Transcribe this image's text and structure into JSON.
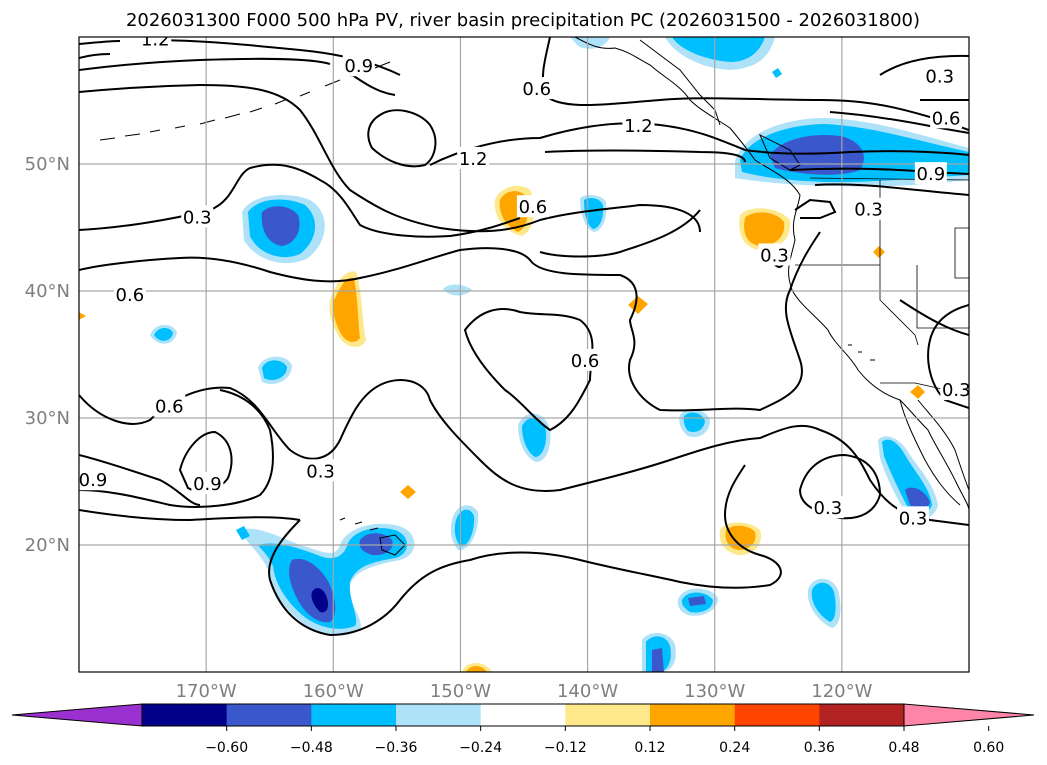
{
  "title": "2026031300 F000 500 hPa PV, river basin precipitation PC (2026031500 - 2026031800)",
  "map": {
    "lon_range": [
      -180,
      -110
    ],
    "lat_range": [
      10,
      60
    ],
    "lon_ticks": [
      {
        "value": -170,
        "label": "170°W"
      },
      {
        "value": -160,
        "label": "160°W"
      },
      {
        "value": -150,
        "label": "150°W"
      },
      {
        "value": -140,
        "label": "140°W"
      },
      {
        "value": -130,
        "label": "130°W"
      },
      {
        "value": -120,
        "label": "120°W"
      }
    ],
    "lat_ticks": [
      {
        "value": 20,
        "label": "20°N"
      },
      {
        "value": 30,
        "label": "30°N"
      },
      {
        "value": 40,
        "label": "40°N"
      },
      {
        "value": 50,
        "label": "50°N"
      }
    ],
    "gridlines": true,
    "contour_levels": [
      0.3,
      0.6,
      0.9,
      1.2
    ],
    "contour_labels": [
      {
        "text": "1.2",
        "lon": -174,
        "lat": 59.8
      },
      {
        "text": "0.9",
        "lon": -158,
        "lat": 57.7
      },
      {
        "text": "0.6",
        "lon": -144,
        "lat": 55.9
      },
      {
        "text": "1.2",
        "lon": -136,
        "lat": 53.0
      },
      {
        "text": "1.2",
        "lon": -149,
        "lat": 50.4
      },
      {
        "text": "0.3",
        "lon": -125.3,
        "lat": 42.8
      },
      {
        "text": "0.6",
        "lon": -144.3,
        "lat": 46.6
      },
      {
        "text": "0.3",
        "lon": -170.7,
        "lat": 45.8
      },
      {
        "text": "0.6",
        "lon": -176,
        "lat": 39.7
      },
      {
        "text": "0.6",
        "lon": -140.2,
        "lat": 34.5
      },
      {
        "text": "0.6",
        "lon": -172.9,
        "lat": 30.9
      },
      {
        "text": "0.9",
        "lon": -178.9,
        "lat": 25.1
      },
      {
        "text": "0.9",
        "lon": -169.9,
        "lat": 24.8
      },
      {
        "text": "0.3",
        "lon": -161,
        "lat": 25.8
      },
      {
        "text": "0.3",
        "lon": -121.1,
        "lat": 22.9
      },
      {
        "text": "0.3",
        "lon": -112.3,
        "lat": 56.9
      },
      {
        "text": "0.6",
        "lon": -111.8,
        "lat": 53.6
      },
      {
        "text": "0.9",
        "lon": -113,
        "lat": 49.2
      },
      {
        "text": "0.3",
        "lon": -117.9,
        "lat": 46.4
      },
      {
        "text": "0.3",
        "lon": -111,
        "lat": 32.2
      },
      {
        "text": "0.3",
        "lon": -114.4,
        "lat": 22.1
      }
    ]
  },
  "colorbar": {
    "ticks": [
      "−0.60",
      "−0.48",
      "−0.36",
      "−0.24",
      "−0.12",
      "0.12",
      "0.24",
      "0.36",
      "0.48",
      "0.60"
    ],
    "colors": [
      "#9b30d0",
      "#00008b",
      "#3a57cc",
      "#00bfff",
      "#aee2f9",
      "#ffffff",
      "#fee88a",
      "#ffa500",
      "#ff4500",
      "#b22222",
      "#ff85a8"
    ]
  }
}
